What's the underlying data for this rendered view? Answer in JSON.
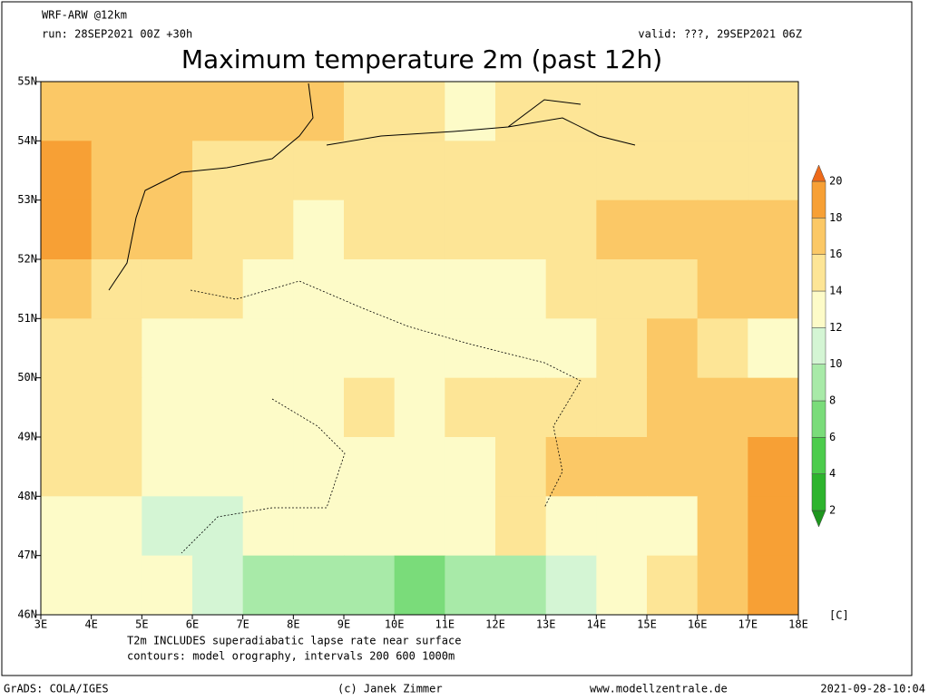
{
  "header": {
    "model": "WRF-ARW @12km",
    "run": "run: 28SEP2021 00Z +30h",
    "valid": "valid: ???, 29SEP2021 06Z",
    "title": "Maximum temperature 2m (past 12h)"
  },
  "map": {
    "lonlim": [
      3,
      18
    ],
    "latlim": [
      46,
      55
    ],
    "lon_ticks": [
      {
        "value": 3,
        "label": "3E"
      },
      {
        "value": 4,
        "label": "4E"
      },
      {
        "value": 5,
        "label": "5E"
      },
      {
        "value": 6,
        "label": "6E"
      },
      {
        "value": 7,
        "label": "7E"
      },
      {
        "value": 8,
        "label": "8E"
      },
      {
        "value": 9,
        "label": "9E"
      },
      {
        "value": 10,
        "label": "10E"
      },
      {
        "value": 11,
        "label": "11E"
      },
      {
        "value": 12,
        "label": "12E"
      },
      {
        "value": 13,
        "label": "13E"
      },
      {
        "value": 14,
        "label": "14E"
      },
      {
        "value": 15,
        "label": "15E"
      },
      {
        "value": 16,
        "label": "16E"
      },
      {
        "value": 17,
        "label": "17E"
      },
      {
        "value": 18,
        "label": "18E"
      }
    ],
    "lat_ticks": [
      {
        "value": 46,
        "label": "46N"
      },
      {
        "value": 47,
        "label": "47N"
      },
      {
        "value": 48,
        "label": "48N"
      },
      {
        "value": 49,
        "label": "49N"
      },
      {
        "value": 50,
        "label": "50N"
      },
      {
        "value": 51,
        "label": "51N"
      },
      {
        "value": 52,
        "label": "52N"
      },
      {
        "value": 53,
        "label": "53N"
      },
      {
        "value": 54,
        "label": "54N"
      },
      {
        "value": 55,
        "label": "55N"
      }
    ],
    "temperature_grid": [
      [
        17,
        17,
        17,
        17,
        17,
        16,
        14,
        14,
        13,
        14,
        15,
        15,
        15,
        15,
        15
      ],
      [
        18,
        17,
        16,
        15,
        15,
        14,
        14,
        14,
        14,
        14,
        14,
        14,
        15,
        15,
        15
      ],
      [
        18,
        17,
        16,
        15,
        14,
        13,
        14,
        14,
        14,
        14,
        15,
        16,
        16,
        16,
        16
      ],
      [
        16,
        15,
        15,
        14,
        13,
        12,
        13,
        12,
        13,
        13,
        14,
        14,
        15,
        16,
        17
      ],
      [
        15,
        14,
        13,
        12,
        12,
        12,
        12,
        12,
        13,
        13,
        13,
        15,
        16,
        15,
        13
      ],
      [
        15,
        14,
        13,
        12,
        12,
        13,
        14,
        13,
        14,
        14,
        14,
        15,
        16,
        16,
        16
      ],
      [
        14,
        14,
        13,
        12,
        12,
        12,
        13,
        13,
        13,
        15,
        16,
        16,
        16,
        17,
        18
      ],
      [
        13,
        12,
        11,
        11,
        12,
        12,
        12,
        12,
        12,
        14,
        13,
        12,
        13,
        16,
        18
      ],
      [
        13,
        13,
        12,
        11,
        9,
        8,
        8,
        7,
        8,
        9,
        11,
        12,
        14,
        17,
        18
      ]
    ]
  },
  "colorbar": {
    "levels": [
      2,
      4,
      6,
      8,
      10,
      12,
      14,
      16,
      18,
      20
    ],
    "colors": [
      "#1e961e",
      "#2db42d",
      "#4ccc4c",
      "#7adc7a",
      "#a8eaa8",
      "#d4f5d4",
      "#fdfbc8",
      "#fde596",
      "#fbc866",
      "#f7a035",
      "#ee6a1a"
    ],
    "unit": "[C]"
  },
  "notes": [
    "T2m INCLUDES superadiabatic lapse rate near surface",
    "contours: model orography, intervals 200 600 1000m"
  ],
  "footer": {
    "software": "GrADS: COLA/IGES",
    "copyright": "(c) Janek Zimmer",
    "website": "www.modellzentrale.de",
    "timestamp": "2021-09-28-10:04"
  }
}
